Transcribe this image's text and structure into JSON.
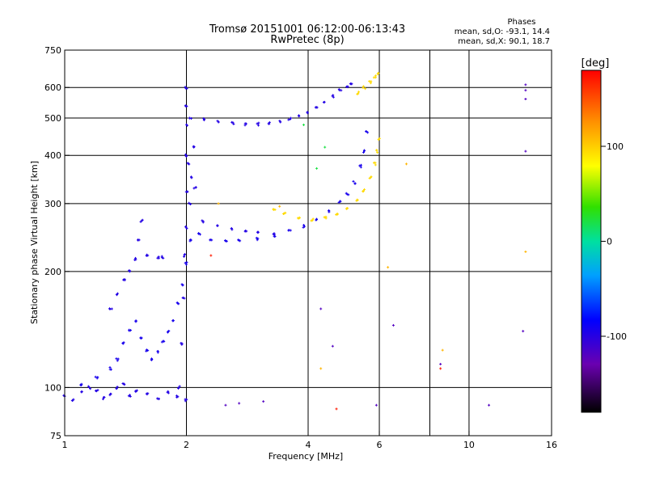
{
  "chart_data": {
    "type": "scatter",
    "title": "Tromsø 20151001 06:12:00-06:13:43",
    "subtitle": "RwPretec (8p)",
    "xlabel": "Frequency [MHz]",
    "ylabel": "Stationary phase Virtual Height [km]",
    "x_scale": "log",
    "y_scale": "log",
    "xlim": [
      1,
      16
    ],
    "ylim": [
      75,
      750
    ],
    "x_ticks": [
      1,
      2,
      4,
      6,
      10,
      16
    ],
    "y_ticks": [
      75,
      100,
      200,
      300,
      400,
      500,
      600,
      750
    ],
    "x_gridlines": [
      2,
      4,
      6,
      8,
      10
    ],
    "y_gridlines": [
      100,
      200,
      300,
      400,
      500,
      600
    ],
    "grid": true,
    "phase_info": {
      "heading": "Phases",
      "o_line": "mean, sd,O: -93.1, 14.4",
      "x_line": "mean, sd,X:  90.1, 18.7"
    },
    "colorbar": {
      "label": "[deg]",
      "range": [
        -180,
        180
      ],
      "ticks": [
        100,
        0,
        -100
      ],
      "tick_labels": [
        "100",
        "0",
        "-100"
      ]
    },
    "traces": [
      {
        "kind": "low-layer echoes",
        "phase": -100,
        "points": [
          [
            1.0,
            95
          ],
          [
            1.05,
            93
          ],
          [
            1.1,
            97
          ],
          [
            1.15,
            100
          ],
          [
            1.2,
            98
          ],
          [
            1.25,
            94
          ],
          [
            1.3,
            96
          ],
          [
            1.35,
            100
          ],
          [
            1.4,
            102
          ],
          [
            1.45,
            95
          ],
          [
            1.5,
            98
          ],
          [
            1.6,
            96
          ],
          [
            1.7,
            94
          ],
          [
            1.8,
            97
          ],
          [
            1.9,
            95
          ],
          [
            2.0,
            93
          ]
        ]
      },
      {
        "kind": "rising echoes",
        "phase": -95,
        "points": [
          [
            1.1,
            102
          ],
          [
            1.2,
            106
          ],
          [
            1.3,
            112
          ],
          [
            1.35,
            118
          ],
          [
            1.4,
            130
          ],
          [
            1.45,
            140
          ],
          [
            1.5,
            148
          ],
          [
            1.55,
            135
          ],
          [
            1.6,
            125
          ],
          [
            1.65,
            118
          ],
          [
            1.7,
            124
          ],
          [
            1.75,
            132
          ],
          [
            1.8,
            140
          ],
          [
            1.85,
            150
          ],
          [
            1.9,
            165
          ],
          [
            1.95,
            185
          ],
          [
            2.0,
            210
          ],
          [
            2.05,
            240
          ]
        ]
      },
      {
        "kind": "sporadic column",
        "phase": -100,
        "points": [
          [
            1.3,
            160
          ],
          [
            1.35,
            175
          ],
          [
            1.4,
            190
          ],
          [
            1.45,
            200
          ],
          [
            1.5,
            215
          ],
          [
            1.52,
            240
          ],
          [
            1.55,
            270
          ],
          [
            1.6,
            220
          ],
          [
            1.7,
            218
          ],
          [
            1.75,
            218
          ]
        ]
      },
      {
        "kind": "F1 O-mode trace",
        "phase": -95,
        "points": [
          [
            2.15,
            250
          ],
          [
            2.3,
            242
          ],
          [
            2.5,
            240
          ],
          [
            2.7,
            241
          ],
          [
            3.0,
            243
          ],
          [
            3.3,
            248
          ],
          [
            3.6,
            255
          ],
          [
            3.9,
            262
          ],
          [
            4.2,
            272
          ],
          [
            4.5,
            286
          ],
          [
            4.8,
            302
          ],
          [
            5.0,
            318
          ],
          [
            5.2,
            340
          ],
          [
            5.4,
            375
          ],
          [
            5.5,
            410
          ],
          [
            5.6,
            460
          ]
        ]
      },
      {
        "kind": "F1 upper trace",
        "phase": -100,
        "points": [
          [
            2.2,
            270
          ],
          [
            2.4,
            262
          ],
          [
            2.6,
            258
          ],
          [
            2.8,
            255
          ],
          [
            3.0,
            252
          ],
          [
            3.3,
            250
          ]
        ]
      },
      {
        "kind": "F1 X-mode trace",
        "phase": 95,
        "points": [
          [
            3.3,
            290
          ],
          [
            3.5,
            282
          ],
          [
            3.8,
            275
          ],
          [
            4.1,
            272
          ],
          [
            4.4,
            276
          ],
          [
            4.7,
            282
          ],
          [
            5.0,
            292
          ],
          [
            5.3,
            305
          ],
          [
            5.5,
            325
          ],
          [
            5.7,
            350
          ],
          [
            5.85,
            380
          ],
          [
            5.95,
            410
          ],
          [
            6.0,
            440
          ]
        ]
      },
      {
        "kind": "F2 O-mode trace",
        "phase": -100,
        "points": [
          [
            2.05,
            500
          ],
          [
            2.2,
            495
          ],
          [
            2.4,
            490
          ],
          [
            2.6,
            485
          ],
          [
            2.8,
            482
          ],
          [
            3.0,
            482
          ],
          [
            3.2,
            485
          ],
          [
            3.4,
            490
          ],
          [
            3.6,
            497
          ],
          [
            3.8,
            505
          ],
          [
            4.0,
            515
          ],
          [
            4.2,
            530
          ],
          [
            4.4,
            550
          ],
          [
            4.6,
            570
          ],
          [
            4.8,
            590
          ],
          [
            5.0,
            605
          ],
          [
            5.1,
            615
          ]
        ]
      },
      {
        "kind": "F2 X-mode trace",
        "phase": 95,
        "points": [
          [
            5.3,
            580
          ],
          [
            5.5,
            600
          ],
          [
            5.7,
            620
          ],
          [
            5.85,
            640
          ],
          [
            5.95,
            650
          ]
        ]
      },
      {
        "kind": "E-F spread column",
        "phase": -100,
        "points": [
          [
            1.92,
            100
          ],
          [
            1.95,
            130
          ],
          [
            1.97,
            170
          ],
          [
            1.98,
            220
          ],
          [
            2.0,
            260
          ],
          [
            2.0,
            320
          ],
          [
            2.0,
            400
          ],
          [
            2.0,
            480
          ],
          [
            2.0,
            540
          ],
          [
            2.0,
            600
          ],
          [
            2.02,
            380
          ],
          [
            2.04,
            300
          ],
          [
            2.05,
            350
          ],
          [
            2.08,
            420
          ],
          [
            2.1,
            330
          ]
        ]
      },
      {
        "kind": "isolated points",
        "phase": -120,
        "points": [
          [
            2.5,
            90
          ],
          [
            2.7,
            91
          ],
          [
            3.1,
            92
          ],
          [
            4.3,
            160
          ],
          [
            4.6,
            128
          ],
          [
            5.9,
            90
          ],
          [
            6.5,
            145
          ],
          [
            8.5,
            115
          ],
          [
            11.2,
            90
          ],
          [
            13.6,
            140
          ],
          [
            13.8,
            610
          ],
          [
            13.8,
            590
          ],
          [
            13.8,
            560
          ],
          [
            13.8,
            410
          ]
        ]
      },
      {
        "kind": "isolated points",
        "phase": 110,
        "points": [
          [
            2.4,
            300
          ],
          [
            3.4,
            295
          ],
          [
            4.3,
            112
          ],
          [
            6.3,
            205
          ],
          [
            7.0,
            380
          ],
          [
            8.6,
            125
          ],
          [
            13.8,
            225
          ]
        ]
      },
      {
        "kind": "isolated points",
        "phase": 20,
        "points": [
          [
            4.2,
            370
          ],
          [
            4.4,
            420
          ],
          [
            3.9,
            480
          ]
        ]
      },
      {
        "kind": "isolated points",
        "phase": 170,
        "points": [
          [
            4.7,
            88
          ],
          [
            2.3,
            220
          ],
          [
            8.5,
            112
          ]
        ]
      }
    ]
  }
}
